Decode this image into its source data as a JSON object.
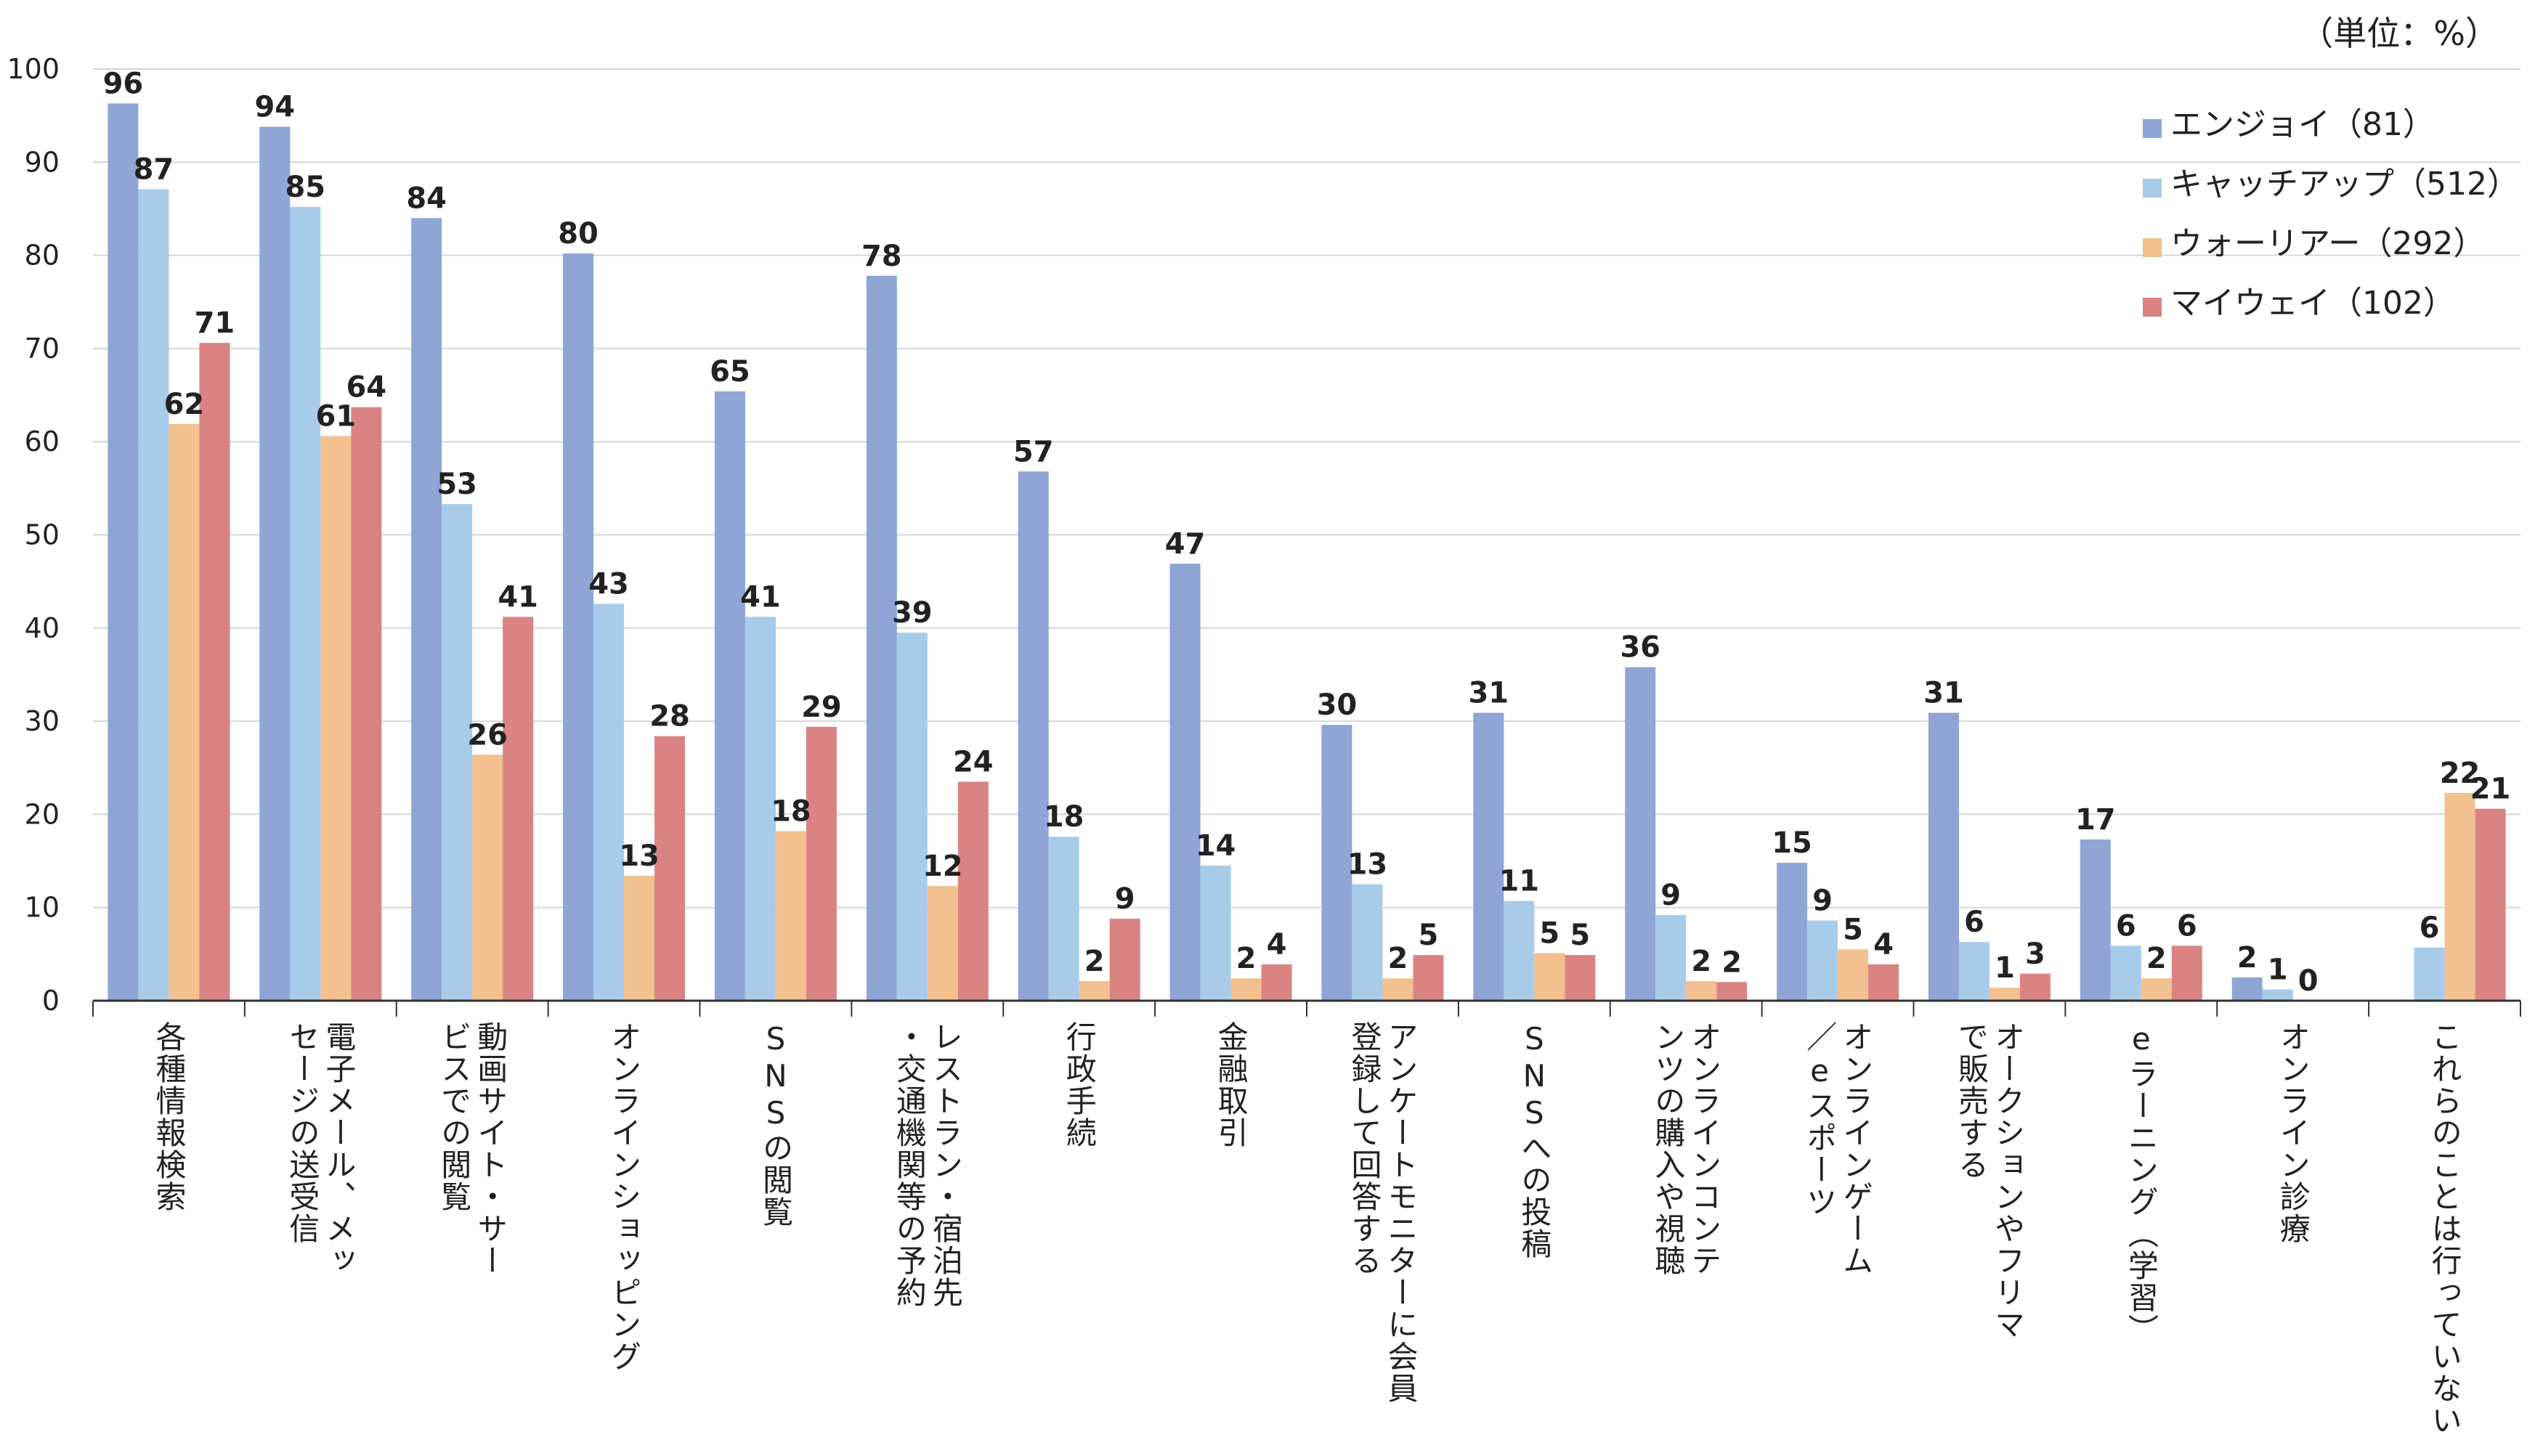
{
  "chart_data": {
    "type": "bar",
    "title": "",
    "unit": "（単位：%）",
    "xlabel": "",
    "ylabel": "",
    "ylim": [
      0,
      100
    ],
    "yticks": [
      0,
      10,
      20,
      30,
      40,
      50,
      60,
      70,
      80,
      90,
      100
    ],
    "grid": true,
    "legend_position": "top-right",
    "categories": [
      [
        "各種情報検索"
      ],
      [
        "電子メール、メッ",
        "セージの送受信"
      ],
      [
        "動画サイト・サー",
        "ビスでの閲覧"
      ],
      [
        "オンラインショッピング"
      ],
      [
        "SNSの閲覧"
      ],
      [
        "レストラン・宿泊先",
        "・交通機関等の予約"
      ],
      [
        "行政手続"
      ],
      [
        "金融取引"
      ],
      [
        "アンケートモニターに会員",
        "登録して回答する"
      ],
      [
        "SNSへの投稿"
      ],
      [
        "オンラインコンテ",
        "ンツの購入や視聴"
      ],
      [
        "オンラインゲーム",
        "／eスポーツ"
      ],
      [
        "オークションやフリマ",
        "で販売する"
      ],
      [
        "eラーニング（学習）"
      ],
      [
        "オンライン診療"
      ],
      [
        "これらのことは行っていない"
      ]
    ],
    "series": [
      {
        "name": "エンジョイ（81）",
        "color": "#8ea5d5",
        "values": [
          96.3,
          93.8,
          84.0,
          80.2,
          65.4,
          77.8,
          56.8,
          46.9,
          29.6,
          30.9,
          35.8,
          14.8,
          30.9,
          17.3,
          2.5,
          null
        ],
        "labels": [
          "96",
          "94",
          "84",
          "80",
          "65",
          "78",
          "57",
          "47",
          "30",
          "31",
          "36",
          "15",
          "31",
          "17",
          "2",
          ""
        ]
      },
      {
        "name": "キャッチアップ（512）",
        "color": "#a9cbea",
        "values": [
          87.1,
          85.2,
          53.3,
          42.6,
          41.2,
          39.5,
          17.6,
          14.5,
          12.5,
          10.7,
          9.2,
          8.6,
          6.3,
          5.9,
          1.2,
          5.7
        ],
        "labels": [
          "87",
          "85",
          "53",
          "43",
          "41",
          "39",
          "18",
          "14",
          "13",
          "11",
          "9",
          "9",
          "6",
          "6",
          "1",
          "6"
        ]
      },
      {
        "name": "ウォーリアー（292）",
        "color": "#f2c18f",
        "values": [
          61.9,
          60.6,
          26.4,
          13.4,
          18.2,
          12.3,
          2.1,
          2.4,
          2.4,
          5.1,
          2.1,
          5.5,
          1.4,
          2.4,
          0.0,
          22.3
        ],
        "labels": [
          "62",
          "61",
          "26",
          "13",
          "18",
          "12",
          "2",
          "2",
          "2",
          "5",
          "2",
          "5",
          "1",
          "2",
          "0",
          "22"
        ]
      },
      {
        "name": "マイウェイ（102）",
        "color": "#d98483",
        "values": [
          70.6,
          63.7,
          41.2,
          28.4,
          29.4,
          23.5,
          8.8,
          3.9,
          4.9,
          4.9,
          2.0,
          3.9,
          2.9,
          5.9,
          null,
          20.6
        ],
        "labels": [
          "71",
          "64",
          "41",
          "28",
          "29",
          "24",
          "9",
          "4",
          "5",
          "5",
          "2",
          "4",
          "3",
          "6",
          "",
          "21"
        ]
      }
    ]
  }
}
